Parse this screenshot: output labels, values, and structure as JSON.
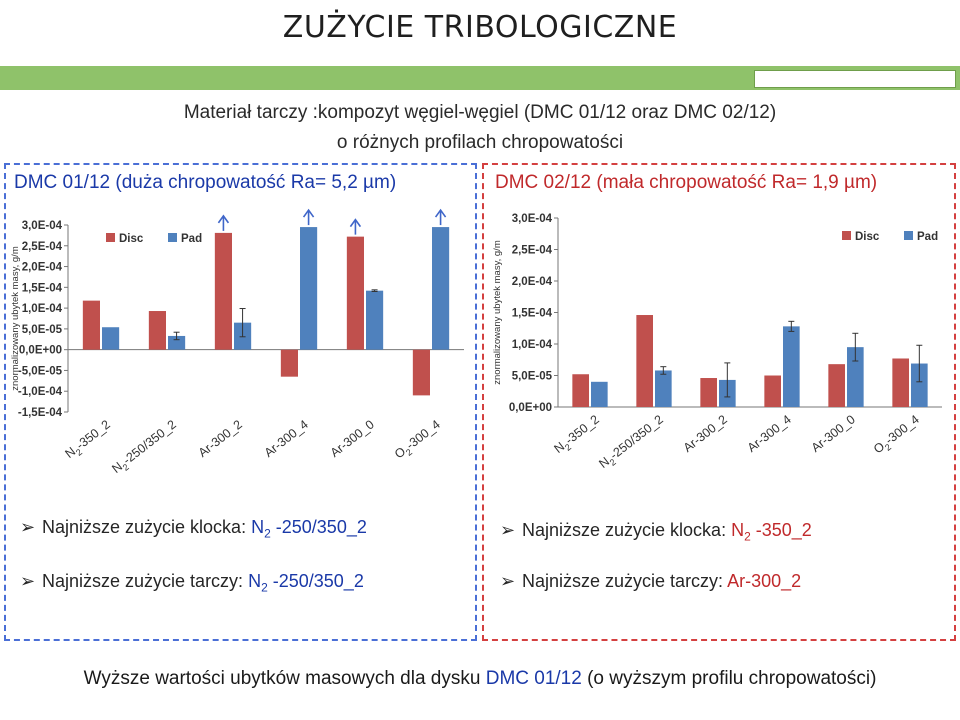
{
  "title": "ZUŻYCIE TRIBOLOGICZNE",
  "subtitle_line1": "Materiał tarczy :kompozyt węgiel-węgiel (DMC 01/12 oraz DMC 02/12)",
  "subtitle_line2": "o różnych profilach chropowatości",
  "left_panel": {
    "title": "DMC 01/12 (duża chropowatość Ra= 5,2 µm)",
    "bullet1_prefix": "Najniższe zużycie klocka: ",
    "bullet1_value": "N 2 -250/350_2",
    "bullet2_prefix": "Najniższe zużycie tarczy: ",
    "bullet2_value": "N 2 -250/350_2"
  },
  "right_panel": {
    "title": "DMC 02/12 (mała chropowatość Ra= 1,9 µm)",
    "bullet1_prefix": "Najniższe zużycie klocka: ",
    "bullet1_value": "N 2 -350_2",
    "bullet2_prefix": "Najniższe zużycie tarczy: ",
    "bullet2_value": "Ar-300_2"
  },
  "bottom_prefix": "Wyższe wartości ubytków masowych dla dysku ",
  "bottom_highlight": "DMC 01/12",
  "bottom_suffix": " (o wyższym profilu chropowatości)",
  "colors": {
    "disc": "#c0504d",
    "pad": "#4f81bd",
    "blue_panel": "#4a6fd6",
    "red_panel": "#d44040"
  },
  "chart_data": [
    {
      "type": "bar",
      "ylabel": "znormalizowany ubytek masy, g/m",
      "categories": [
        "N2-350_2",
        "N2-250/350_2",
        "Ar-300_2",
        "Ar-300_4",
        "Ar-300_0",
        "O2-300_4"
      ],
      "category_labels": [
        {
          "pre": "N",
          "sub": "2",
          "post": "-350_2"
        },
        {
          "pre": "N",
          "sub": "2",
          "post": "-250/350_2"
        },
        {
          "pre": "Ar-300_2",
          "sub": "",
          "post": ""
        },
        {
          "pre": "Ar-300_4",
          "sub": "",
          "post": ""
        },
        {
          "pre": "Ar-300_0",
          "sub": "",
          "post": ""
        },
        {
          "pre": "O",
          "sub": "2",
          "post": "-300_4"
        }
      ],
      "ylim": [
        -0.00015,
        0.0003
      ],
      "yticks": [
        -0.00015,
        -0.0001,
        -5e-05,
        0,
        5e-05,
        0.0001,
        0.00015,
        0.0002,
        0.00025,
        0.0003
      ],
      "ytick_labels": [
        "-1,5E-04",
        "-1,0E-04",
        "-5,0E-05",
        "0,0E+00",
        "5,0E-05",
        "1,0E-04",
        "1,5E-04",
        "2,0E-04",
        "2,5E-04",
        "3,0E-04"
      ],
      "legend_position": "top-left",
      "series": [
        {
          "name": "Disc",
          "values": [
            0.000118,
            9.3e-05,
            0.000281,
            -6.5e-05,
            0.000272,
            -0.00011
          ],
          "errors": [
            0,
            0,
            0,
            0,
            0,
            0
          ],
          "overflow": [
            false,
            false,
            true,
            false,
            true,
            false
          ]
        },
        {
          "name": "Pad",
          "values": [
            5.4e-05,
            3.3e-05,
            6.5e-05,
            0.000295,
            0.000142,
            0.000295
          ],
          "errors": [
            0,
            9e-06,
            3.4e-05,
            0,
            2e-06,
            0
          ],
          "overflow": [
            false,
            false,
            false,
            true,
            false,
            true
          ]
        }
      ]
    },
    {
      "type": "bar",
      "ylabel": "znormalizowany ubytek masy, g/m",
      "categories": [
        "N2-350_2",
        "N2-250/350_2",
        "Ar-300_2",
        "Ar-300_4",
        "Ar-300_0",
        "O2-300_4"
      ],
      "category_labels": [
        {
          "pre": "N",
          "sub": "2",
          "post": "-350_2"
        },
        {
          "pre": "N",
          "sub": "2",
          "post": "-250/350_2"
        },
        {
          "pre": "Ar-300_2",
          "sub": "",
          "post": ""
        },
        {
          "pre": "Ar-300_4",
          "sub": "",
          "post": ""
        },
        {
          "pre": "Ar-300_0",
          "sub": "",
          "post": ""
        },
        {
          "pre": "O",
          "sub": "2",
          "post": "-300_4"
        }
      ],
      "ylim": [
        0,
        0.0003
      ],
      "yticks": [
        0,
        5e-05,
        0.0001,
        0.00015,
        0.0002,
        0.00025,
        0.0003
      ],
      "ytick_labels": [
        "0,0E+00",
        "5,0E-05",
        "1,0E-04",
        "1,5E-04",
        "2,0E-04",
        "2,5E-04",
        "3,0E-04"
      ],
      "legend_position": "top-right",
      "series": [
        {
          "name": "Disc",
          "values": [
            5.2e-05,
            0.000146,
            4.6e-05,
            5e-05,
            6.8e-05,
            7.7e-05
          ],
          "errors": [
            0,
            0,
            0,
            0,
            0,
            0
          ],
          "overflow": [
            false,
            false,
            false,
            false,
            false,
            false
          ]
        },
        {
          "name": "Pad",
          "values": [
            4e-05,
            5.8e-05,
            4.3e-05,
            0.000128,
            9.5e-05,
            6.9e-05
          ],
          "errors": [
            0,
            6e-06,
            2.7e-05,
            8e-06,
            2.2e-05,
            2.9e-05
          ],
          "overflow": [
            false,
            false,
            false,
            false,
            false,
            false
          ]
        }
      ]
    }
  ]
}
